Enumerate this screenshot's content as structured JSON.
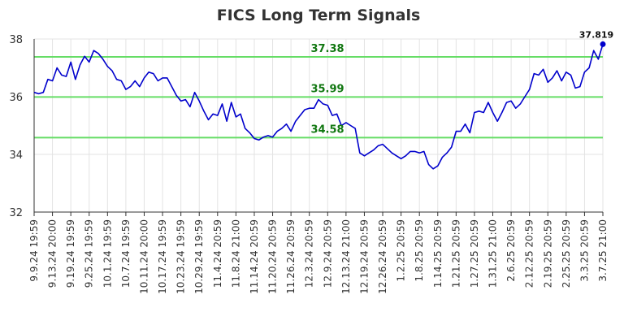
{
  "chart_data": {
    "type": "line",
    "title": "FICS Long Term Signals",
    "xlabel": "",
    "ylabel": "",
    "ylim": [
      32,
      38
    ],
    "yticks": [
      32,
      34,
      36,
      38
    ],
    "grid": true,
    "x_tick_labels": [
      "9.9.24 19:59",
      "9.13.24 20:00",
      "9.19.24 19:59",
      "9.25.24 19:59",
      "10.1.24 19:59",
      "10.7.24 19:59",
      "10.11.24 20:00",
      "10.17.24 19:59",
      "10.23.24 19:59",
      "10.29.24 19:59",
      "11.4.24 20:59",
      "11.8.24 21:00",
      "11.14.24 20:59",
      "11.20.24 20:59",
      "11.26.24 20:59",
      "12.3.24 20:59",
      "12.9.24 20:59",
      "12.13.24 21:00",
      "12.19.24 20:59",
      "12.26.24 20:59",
      "1.2.25 20:59",
      "1.8.25 20:59",
      "1.14.25 20:59",
      "1.21.25 20:59",
      "1.27.25 20:59",
      "1.31.25 21:00",
      "2.6.25 20:59",
      "2.12.25 20:59",
      "2.19.25 20:59",
      "2.25.25 20:59",
      "3.3.25 20:59",
      "3.7.25 21:00"
    ],
    "horizontal_lines": [
      {
        "value": 37.38,
        "label": "37.38"
      },
      {
        "value": 35.99,
        "label": "35.99"
      },
      {
        "value": 34.58,
        "label": "34.58"
      }
    ],
    "last_point_label": "37.819",
    "series": [
      {
        "values": [
          36.15,
          36.1,
          36.15,
          36.6,
          36.55,
          37.0,
          36.75,
          36.7,
          37.2,
          36.6,
          37.1,
          37.4,
          37.2,
          37.6,
          37.5,
          37.3,
          37.05,
          36.9,
          36.6,
          36.55,
          36.25,
          36.35,
          36.55,
          36.35,
          36.65,
          36.85,
          36.8,
          36.55,
          36.65,
          36.65,
          36.35,
          36.05,
          35.85,
          35.9,
          35.65,
          36.15,
          35.85,
          35.5,
          35.2,
          35.4,
          35.35,
          35.75,
          35.15,
          35.8,
          35.3,
          35.4,
          34.9,
          34.75,
          34.55,
          34.5,
          34.6,
          34.65,
          34.6,
          34.8,
          34.9,
          35.05,
          34.8,
          35.15,
          35.35,
          35.55,
          35.6,
          35.6,
          35.9,
          35.75,
          35.7,
          35.35,
          35.4,
          35.0,
          35.1,
          35.0,
          34.9,
          34.05,
          33.95,
          34.05,
          34.15,
          34.3,
          34.35,
          34.2,
          34.05,
          33.95,
          33.85,
          33.95,
          34.1,
          34.1,
          34.05,
          34.1,
          33.65,
          33.5,
          33.6,
          33.9,
          34.05,
          34.25,
          34.8,
          34.8,
          35.05,
          34.75,
          35.45,
          35.5,
          35.45,
          35.8,
          35.45,
          35.15,
          35.45,
          35.8,
          35.85,
          35.6,
          35.75,
          36.0,
          36.25,
          36.8,
          36.75,
          36.95,
          36.5,
          36.65,
          36.9,
          36.55,
          36.85,
          36.75,
          36.3,
          36.35,
          36.85,
          37.0,
          37.6,
          37.3,
          37.819
        ]
      }
    ],
    "colors": {
      "line": "#0000cc",
      "hline": "#66dd66",
      "hlabel": "#117711",
      "grid": "#e3e3e3",
      "axis": "#333333"
    }
  }
}
